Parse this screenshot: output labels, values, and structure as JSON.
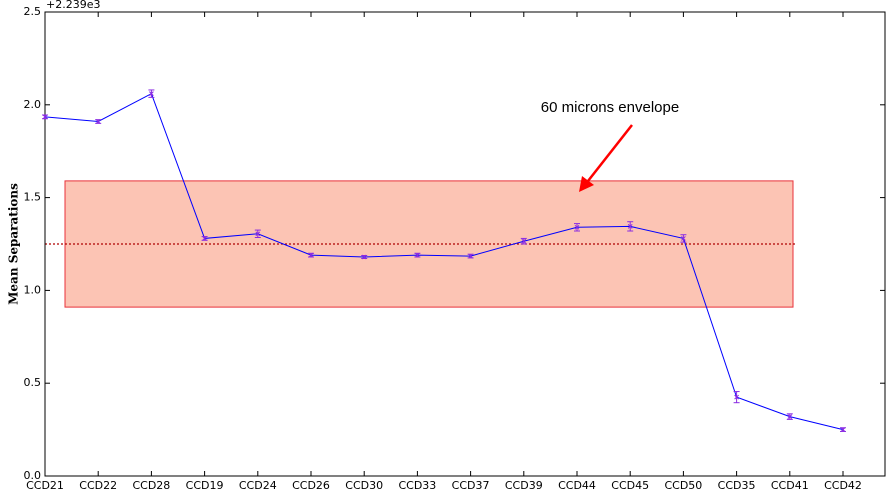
{
  "chart_data": {
    "type": "line",
    "y_label": "Mean Separations",
    "offset_text": "+2.239e3",
    "annotation": "60 microns envelope",
    "categories": [
      "CCD21",
      "CCD22",
      "CCD28",
      "CCD19",
      "CCD24",
      "CCD26",
      "CCD30",
      "CCD33",
      "CCD37",
      "CCD39",
      "CCD44",
      "CCD45",
      "CCD50",
      "CCD35",
      "CCD41",
      "CCD42"
    ],
    "series": [
      {
        "color": "#0000ff",
        "values": [
          1.935,
          1.91,
          2.06,
          1.28,
          1.305,
          1.19,
          1.18,
          1.19,
          1.185,
          1.265,
          1.34,
          1.345,
          1.28,
          0.425,
          0.32,
          0.25
        ],
        "errors": [
          0.01,
          0.01,
          0.02,
          0.01,
          0.02,
          0.01,
          0.008,
          0.01,
          0.01,
          0.015,
          0.02,
          0.025,
          0.02,
          0.03,
          0.015,
          0.01
        ]
      }
    ],
    "error_color": "#8a2be2",
    "envelope": {
      "ymin": 0.91,
      "ymax": 1.59,
      "fill": "#fcc4b4",
      "edge": "#e8303a"
    },
    "reference_line": {
      "value": 1.25,
      "color": "#b00000"
    },
    "ylim": [
      0,
      2.5
    ],
    "yticks": [
      {
        "value": 0,
        "label": "0.0"
      },
      0.5,
      {
        "value": 1,
        "label": "1.0"
      },
      1.5,
      {
        "value": 2,
        "label": "2.0"
      },
      2.5
    ]
  }
}
